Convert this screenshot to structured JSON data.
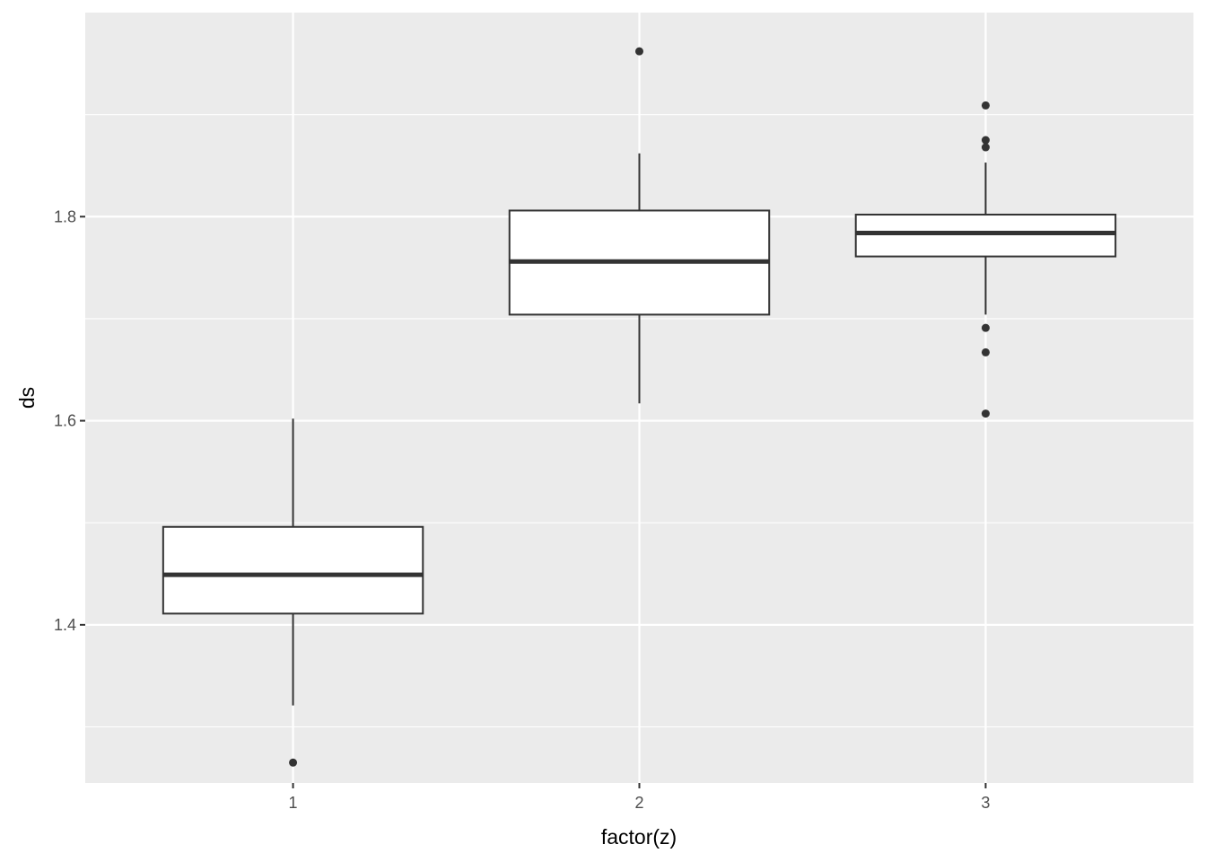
{
  "chart_data": {
    "type": "boxplot",
    "xlabel": "factor(z)",
    "ylabel": "ds",
    "categories": [
      "1",
      "2",
      "3"
    ],
    "ylim": [
      1.245,
      2.0
    ],
    "y_ticks": [
      1.4,
      1.6,
      1.8
    ],
    "y_tick_labels": [
      "1.4",
      "1.6",
      "1.8"
    ],
    "grid": true,
    "boxes": [
      {
        "category": "1",
        "whisker_low": 1.321,
        "q1": 1.411,
        "median": 1.449,
        "q3": 1.496,
        "whisker_high": 1.602,
        "outliers": [
          1.265
        ]
      },
      {
        "category": "2",
        "whisker_low": 1.617,
        "q1": 1.704,
        "median": 1.756,
        "q3": 1.806,
        "whisker_high": 1.862,
        "outliers": [
          1.962
        ]
      },
      {
        "category": "3",
        "whisker_low": 1.704,
        "q1": 1.761,
        "median": 1.784,
        "q3": 1.802,
        "whisker_high": 1.853,
        "outliers": [
          1.909,
          1.875,
          1.868,
          1.691,
          1.667,
          1.607
        ]
      }
    ],
    "colors": {
      "panel": "#EBEBEB",
      "grid_major": "#FFFFFF",
      "box_fill": "#FFFFFF",
      "box_line": "#333333",
      "tick_text": "#4D4D4D",
      "tick_mark": "#333333"
    }
  }
}
